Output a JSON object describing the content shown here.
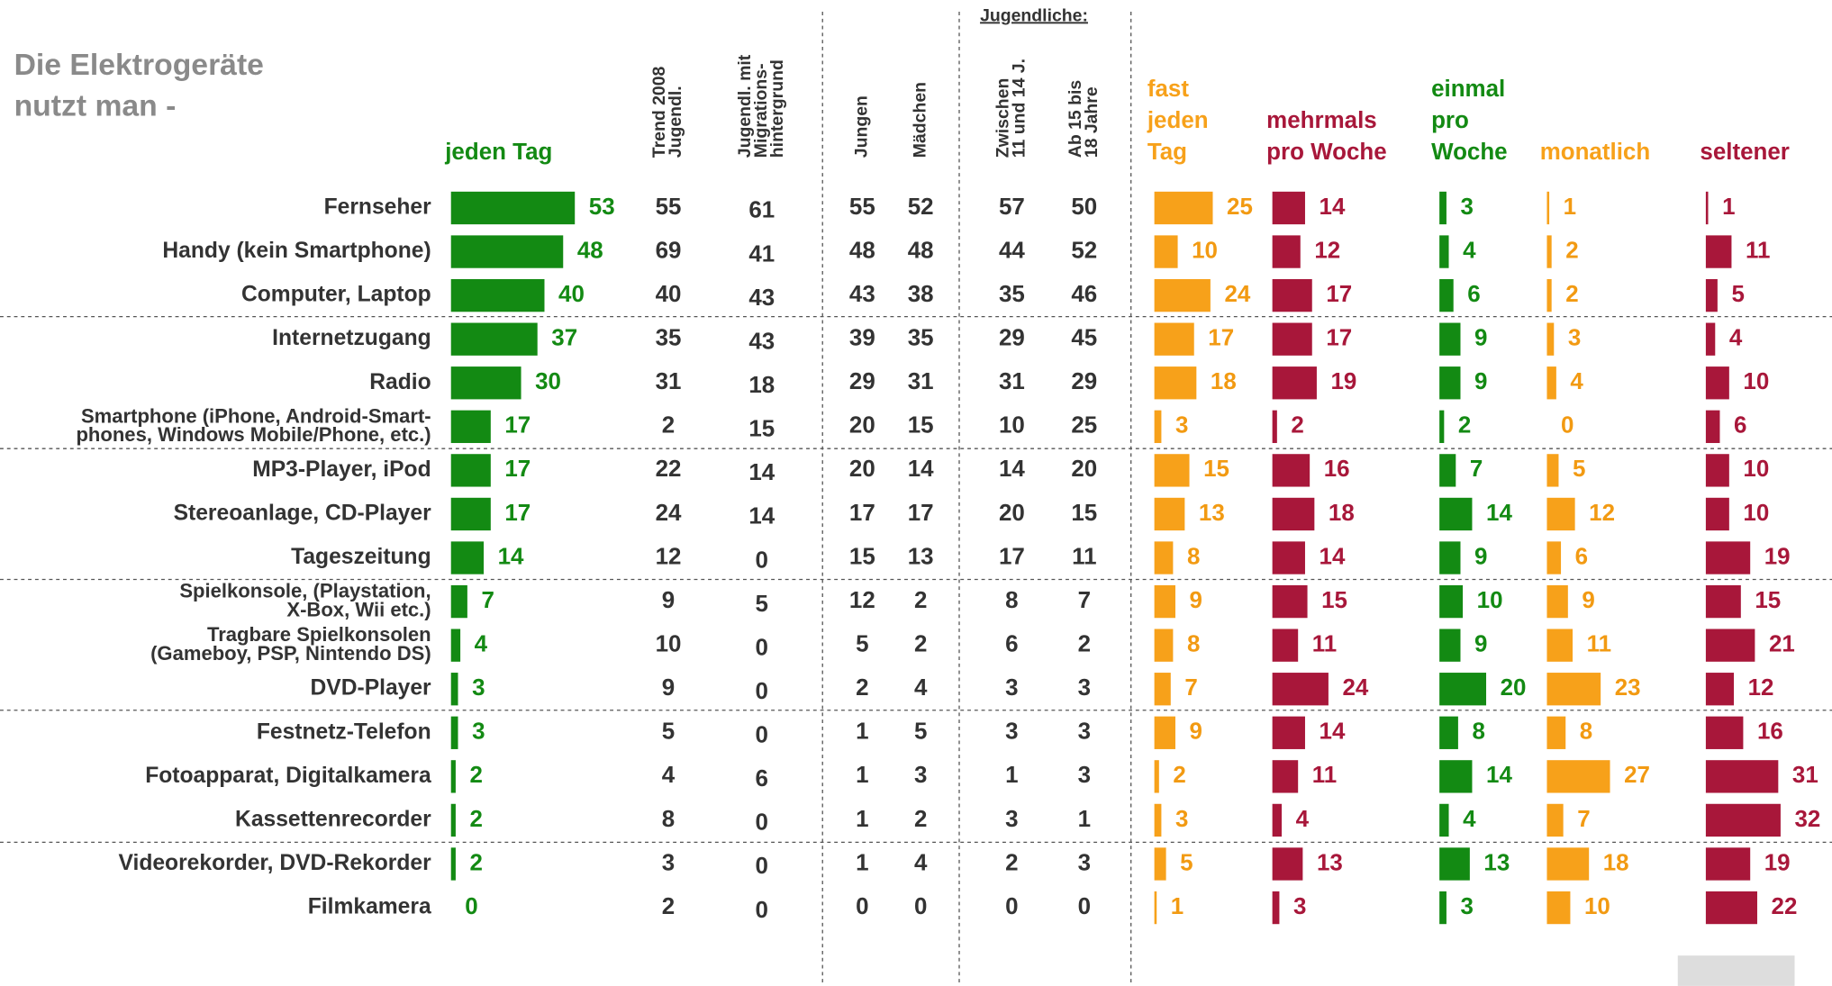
{
  "chart_data": {
    "type": "bar",
    "title": [
      "Die Elektrogeräte",
      "nutzt man -"
    ],
    "group_label": "Jugendliche:",
    "categories": [
      [
        "Fernseher"
      ],
      [
        "Handy (kein Smartphone)"
      ],
      [
        "Computer, Laptop"
      ],
      [
        "Internetzugang"
      ],
      [
        "Radio"
      ],
      [
        "Smartphone (iPhone, Android-Smart-",
        "phones, Windows Mobile/Phone, etc.)"
      ],
      [
        "MP3-Player, iPod"
      ],
      [
        "Stereoanlage, CD-Player"
      ],
      [
        "Tageszeitung"
      ],
      [
        "Spielkonsole, (Playstation,",
        "X-Box, Wii etc.)"
      ],
      [
        "Tragbare Spielkonsolen",
        "(Gameboy, PSP, Nintendo DS)"
      ],
      [
        "DVD-Player"
      ],
      [
        "Festnetz-Telefon"
      ],
      [
        "Fotoapparat, Digitalkamera"
      ],
      [
        "Kassettenrecorder"
      ],
      [
        "Videorekorder, DVD-Rekorder"
      ],
      [
        "Filmkamera"
      ]
    ],
    "series": [
      {
        "name": [
          "jeden Tag"
        ],
        "color": "#138a13",
        "values": [
          53,
          48,
          40,
          37,
          30,
          17,
          17,
          17,
          14,
          7,
          4,
          3,
          3,
          2,
          2,
          2,
          0
        ]
      },
      {
        "name": [
          "Trend 2008",
          "Jugendl."
        ],
        "values": [
          55,
          69,
          40,
          35,
          31,
          2,
          22,
          24,
          12,
          9,
          10,
          9,
          5,
          4,
          8,
          3,
          2
        ]
      },
      {
        "name": [
          "Jugendl. mit",
          "Migrations-",
          "hintergrund"
        ],
        "values": [
          61,
          41,
          43,
          43,
          18,
          15,
          14,
          14,
          0,
          5,
          0,
          0,
          0,
          6,
          0,
          0,
          0
        ]
      },
      {
        "name": [
          "Jungen"
        ],
        "values": [
          55,
          48,
          43,
          39,
          29,
          20,
          20,
          17,
          15,
          12,
          5,
          2,
          1,
          1,
          1,
          1,
          0
        ]
      },
      {
        "name": [
          "Mädchen"
        ],
        "values": [
          52,
          48,
          38,
          35,
          31,
          15,
          14,
          17,
          13,
          2,
          2,
          4,
          5,
          3,
          2,
          4,
          0
        ]
      },
      {
        "name": [
          "Zwischen",
          "11 und 14 J."
        ],
        "values": [
          57,
          44,
          35,
          29,
          31,
          10,
          14,
          20,
          17,
          8,
          6,
          3,
          3,
          1,
          3,
          2,
          0
        ]
      },
      {
        "name": [
          "Ab 15 bis",
          "18 Jahre"
        ],
        "values": [
          50,
          52,
          46,
          45,
          29,
          25,
          20,
          15,
          11,
          7,
          2,
          3,
          3,
          3,
          1,
          3,
          0
        ]
      },
      {
        "name": [
          "fast",
          "jeden",
          "Tag"
        ],
        "color": "#f7a11a",
        "values": [
          25,
          10,
          24,
          17,
          18,
          3,
          15,
          13,
          8,
          9,
          8,
          7,
          9,
          2,
          3,
          5,
          1
        ]
      },
      {
        "name": [
          "mehrmals",
          "pro Woche"
        ],
        "color": "#a8173a",
        "values": [
          14,
          12,
          17,
          17,
          19,
          2,
          16,
          18,
          14,
          15,
          11,
          24,
          14,
          11,
          4,
          13,
          3
        ]
      },
      {
        "name": [
          "einmal",
          "pro",
          "Woche"
        ],
        "color": "#138a13",
        "values": [
          3,
          4,
          6,
          9,
          9,
          2,
          7,
          14,
          9,
          10,
          9,
          20,
          8,
          14,
          4,
          13,
          3
        ]
      },
      {
        "name": [
          "monatlich"
        ],
        "color": "#f7a11a",
        "values": [
          1,
          2,
          2,
          3,
          4,
          0,
          5,
          12,
          6,
          9,
          11,
          23,
          8,
          27,
          7,
          18,
          10
        ]
      },
      {
        "name": [
          "seltener"
        ],
        "color": "#a8173a",
        "values": [
          1,
          11,
          5,
          4,
          10,
          6,
          10,
          10,
          19,
          15,
          21,
          12,
          16,
          31,
          32,
          19,
          22
        ]
      }
    ]
  }
}
